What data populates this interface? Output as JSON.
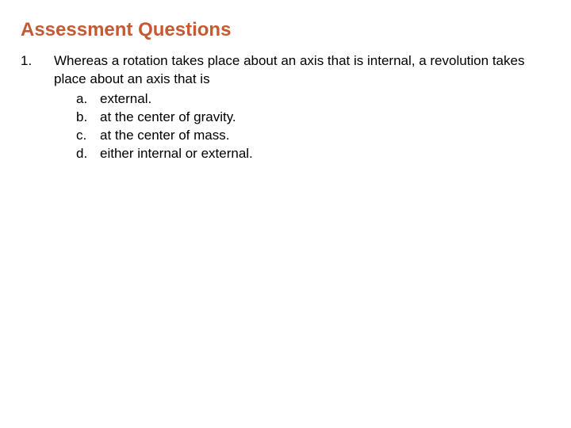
{
  "title": "Assessment Questions",
  "title_color": "#c35a33",
  "background_color": "#ffffff",
  "text_color": "#000000",
  "title_fontsize": 24,
  "body_fontsize": 17,
  "question": {
    "number": "1.",
    "stem": "Whereas a rotation takes place about an axis that is internal, a revolution takes place about an axis that is",
    "options": [
      {
        "letter": "a.",
        "text": "external."
      },
      {
        "letter": "b.",
        "text": "at the center of gravity."
      },
      {
        "letter": "c.",
        "text": "at the center of mass."
      },
      {
        "letter": "d.",
        "text": "either internal or external."
      }
    ]
  }
}
